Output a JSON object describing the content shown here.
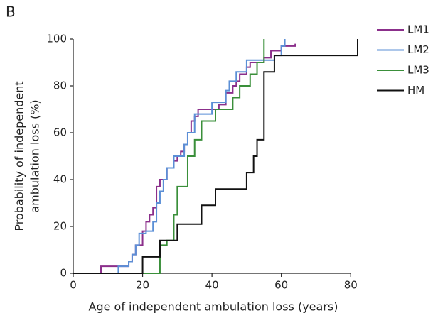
{
  "chart_data": {
    "type": "step",
    "panel_label": "B",
    "xlabel": "Age of independent ambulation loss (years)",
    "ylabel": [
      "Probability of independent",
      "ambulation loss (%)"
    ],
    "xlim": [
      0,
      82
    ],
    "ylim": [
      0,
      100
    ],
    "xticks": [
      0,
      20,
      40,
      60,
      80
    ],
    "yticks": [
      0,
      20,
      40,
      60,
      80,
      100
    ],
    "legend": "top-right",
    "series": [
      {
        "name": "LM1",
        "color": "#8b2f8b",
        "x": [
          0,
          8,
          16,
          17,
          18,
          20,
          21,
          22,
          23,
          24,
          25,
          27,
          29,
          30,
          31,
          32,
          33,
          34,
          35,
          36,
          42,
          44,
          46,
          47,
          48,
          50,
          51,
          55,
          57,
          60,
          64
        ],
        "values": [
          0,
          3,
          5,
          8,
          12,
          18,
          22,
          25,
          28,
          37,
          40,
          45,
          48,
          50,
          52,
          55,
          60,
          65,
          67,
          70,
          72,
          77,
          80,
          82,
          85,
          88,
          90,
          92,
          95,
          97,
          98
        ]
      },
      {
        "name": "LM2",
        "color": "#5b8fd6",
        "x": [
          0,
          13,
          16,
          17,
          18,
          19,
          21,
          23,
          24,
          25,
          26,
          27,
          29,
          32,
          33,
          35,
          40,
          44,
          45,
          47,
          50,
          58,
          60,
          61
        ],
        "values": [
          0,
          3,
          5,
          8,
          12,
          17,
          18,
          22,
          30,
          35,
          40,
          45,
          50,
          55,
          60,
          68,
          73,
          78,
          82,
          86,
          91,
          93,
          97,
          100
        ]
      },
      {
        "name": "LM3",
        "color": "#3a8f3a",
        "x": [
          0,
          25,
          27,
          29,
          30,
          33,
          35,
          37,
          41,
          46,
          48,
          51,
          53,
          55
        ],
        "values": [
          0,
          12,
          14,
          25,
          37,
          50,
          57,
          65,
          70,
          75,
          80,
          85,
          90,
          100
        ]
      },
      {
        "name": "HM",
        "color": "#111111",
        "x": [
          0,
          20,
          25,
          30,
          37,
          41,
          50,
          52,
          53,
          55,
          58,
          82
        ],
        "values": [
          0,
          7,
          14,
          21,
          29,
          36,
          43,
          50,
          57,
          86,
          93,
          100
        ]
      }
    ]
  }
}
